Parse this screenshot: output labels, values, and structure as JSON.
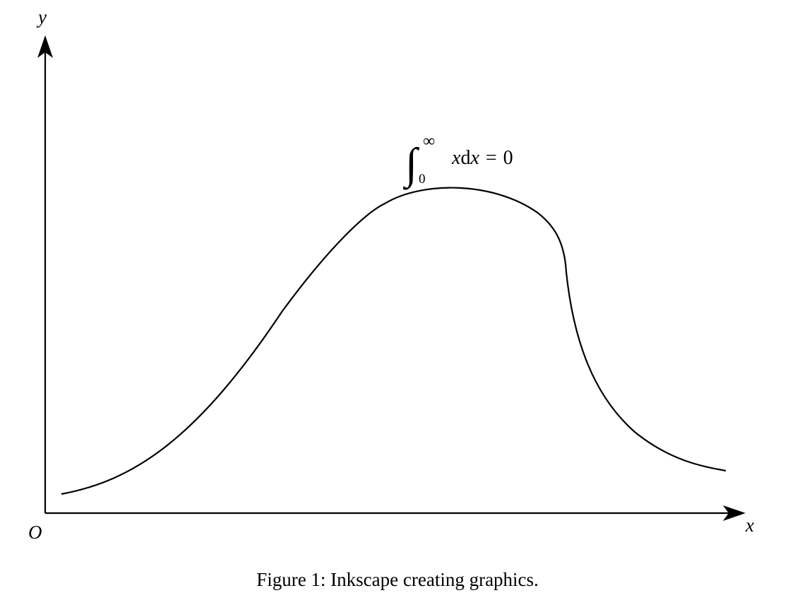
{
  "figure": {
    "axes": {
      "origin_label": "O",
      "x_label": "x",
      "y_label": "y"
    },
    "annotation": {
      "integral_sign": "∫",
      "upper_limit": "∞",
      "lower_limit": "0",
      "integrand_var": "x",
      "differential": "d",
      "differential_var": "x",
      "equals": "=",
      "result": "0"
    },
    "caption": "Figure 1: Inkscape creating graphics."
  }
}
